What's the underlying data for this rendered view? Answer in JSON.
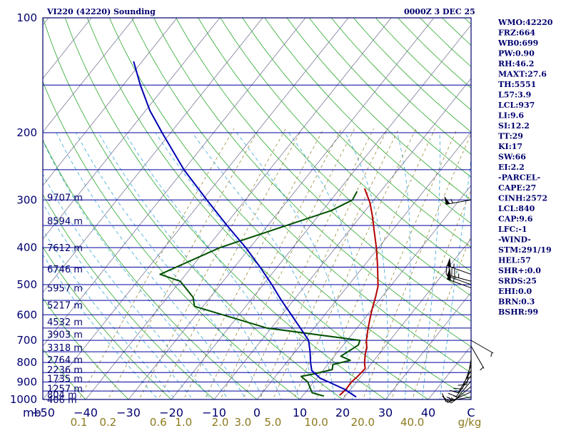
{
  "title_left": "VI220 (42220) Sounding",
  "title_right": "0000Z  3 DEC 25",
  "colors": {
    "frame": "#00006e",
    "isobar": "#0000a0",
    "isotherm": "#7a7a9a",
    "dry_adiabat": "#2aa82a",
    "moist_adiabat": "#3aa8d8",
    "mixing_ratio": "#8c7a1e",
    "temperature": "#b40000",
    "dewpoint": "#005000",
    "parcel": "#0000b4",
    "wind": "#000000"
  },
  "indices": [
    "WMO:42220",
    "FRZ:664",
    "WB0:699",
    "PW:0.90",
    "RH:46.2",
    "MAXT:27.6",
    "TH:5551",
    "L57:3.9",
    "LCL:937",
    "LI:9.6",
    "SI:12.2",
    "TT:29",
    "KI:17",
    "SW:66",
    "EI:2.2",
    "-PARCEL-",
    "CAPE:27",
    "CINH:2572",
    "LCL:840",
    "CAP:9.6",
    "LFC:-1",
    "-WIND-",
    "STM:291/19",
    "HEL:57",
    "SHR+:0.0",
    "SRDS:25",
    "EHI:0.0",
    "BRN:0.3",
    "BSHR:99"
  ],
  "chart_data": {
    "type": "line",
    "diagram": "skew-T log-P",
    "pressure_axis_label": "mb",
    "pressure_range_mb": [
      1000,
      100
    ],
    "pressure_scale": "log",
    "temperature_range_c": [
      -50,
      50
    ],
    "pressure_ticks": [
      "100",
      "200",
      "300",
      "400",
      "500",
      "600",
      "700",
      "800",
      "900",
      "1000"
    ],
    "temperature_ticks": [
      "−50",
      "−40",
      "−30",
      "−20",
      "−10",
      "0",
      "10",
      "20",
      "30",
      "40",
      "C"
    ],
    "mixing_ratio_labels": [
      "0.1",
      "0.2",
      "0.6",
      "1.0",
      "2.0",
      "3.0",
      "5.0",
      "10.0",
      "20.0",
      "40.0"
    ],
    "mixing_ratio_unit": "g/kg",
    "height_labels": [
      {
        "p": 1000,
        "text": "406 m"
      },
      {
        "p": 970,
        "text": "804 m"
      },
      {
        "p": 935,
        "text": "1257 m"
      },
      {
        "p": 880,
        "text": "1735 m"
      },
      {
        "p": 835,
        "text": "2236 m"
      },
      {
        "p": 785,
        "text": "2764 m"
      },
      {
        "p": 730,
        "text": "3318 m"
      },
      {
        "p": 675,
        "text": "3903 m"
      },
      {
        "p": 625,
        "text": "4532 m"
      },
      {
        "p": 565,
        "text": "5217 m"
      },
      {
        "p": 510,
        "text": "5957 m"
      },
      {
        "p": 455,
        "text": "6746 m"
      },
      {
        "p": 400,
        "text": "7612 m"
      },
      {
        "p": 340,
        "text": "8594 m"
      },
      {
        "p": 295,
        "text": "9707 m"
      }
    ],
    "series": [
      {
        "key": "temperature",
        "points": [
          [
            975,
            18.5
          ],
          [
            960,
            18.7
          ],
          [
            940,
            18.9
          ],
          [
            900,
            18.8
          ],
          [
            870,
            19.2
          ],
          [
            830,
            19.5
          ],
          [
            800,
            18.2
          ],
          [
            760,
            16.8
          ],
          [
            730,
            15.9
          ],
          [
            700,
            14.5
          ],
          [
            660,
            13.0
          ],
          [
            620,
            11.5
          ],
          [
            580,
            10.0
          ],
          [
            540,
            8.6
          ],
          [
            505,
            7.1
          ],
          [
            480,
            5.5
          ],
          [
            440,
            2.7
          ],
          [
            400,
            -0.5
          ],
          [
            360,
            -4.3
          ],
          [
            330,
            -7.4
          ],
          [
            305,
            -10.4
          ],
          [
            280,
            -14.3
          ]
        ]
      },
      {
        "key": "dewpoint",
        "points": [
          [
            980,
            15.0
          ],
          [
            960,
            11.6
          ],
          [
            900,
            8.6
          ],
          [
            870,
            6.0
          ],
          [
            860,
            8.0
          ],
          [
            835,
            12.0
          ],
          [
            810,
            11.2
          ],
          [
            790,
            14.5
          ],
          [
            770,
            11.5
          ],
          [
            720,
            13.5
          ],
          [
            700,
            13.0
          ],
          [
            650,
            -11.0
          ],
          [
            570,
            -32.0
          ],
          [
            540,
            -34.0
          ],
          [
            490,
            -40.0
          ],
          [
            470,
            -46.0
          ],
          [
            400,
            -37.0
          ],
          [
            360,
            -28.0
          ],
          [
            320,
            -18.0
          ],
          [
            300,
            -15.0
          ],
          [
            285,
            -15.5
          ]
        ]
      },
      {
        "key": "parcel",
        "points": [
          [
            985,
            22.7
          ],
          [
            940,
            18.5
          ],
          [
            900,
            13.5
          ],
          [
            880,
            10.8
          ],
          [
            840,
            7.4
          ],
          [
            800,
            5.6
          ],
          [
            750,
            3.5
          ],
          [
            700,
            1.0
          ],
          [
            650,
            -3.2
          ],
          [
            600,
            -7.8
          ],
          [
            550,
            -12.8
          ],
          [
            500,
            -18.0
          ],
          [
            450,
            -24.0
          ],
          [
            400,
            -31.0
          ],
          [
            350,
            -39.5
          ],
          [
            300,
            -49.0
          ],
          [
            250,
            -60.0
          ],
          [
            200,
            -72.0
          ],
          [
            175,
            -79.0
          ],
          [
            150,
            -86.0
          ],
          [
            130,
            -92.0
          ]
        ]
      }
    ],
    "wind_barbs": [
      {
        "p": 985,
        "dir": 260,
        "spd": 10
      },
      {
        "p": 955,
        "dir": 245,
        "spd": 15
      },
      {
        "p": 925,
        "dir": 230,
        "spd": 15
      },
      {
        "p": 895,
        "dir": 220,
        "spd": 15
      },
      {
        "p": 865,
        "dir": 215,
        "spd": 15
      },
      {
        "p": 840,
        "dir": 210,
        "spd": 10
      },
      {
        "p": 812,
        "dir": 200,
        "spd": 10
      },
      {
        "p": 785,
        "dir": 190,
        "spd": 10
      },
      {
        "p": 755,
        "dir": 180,
        "spd": 5
      },
      {
        "p": 725,
        "dir": 150,
        "spd": 5
      },
      {
        "p": 700,
        "dir": 120,
        "spd": 5
      },
      {
        "p": 510,
        "dir": 290,
        "spd": 55
      },
      {
        "p": 500,
        "dir": 290,
        "spd": 50
      },
      {
        "p": 490,
        "dir": 285,
        "spd": 45
      },
      {
        "p": 470,
        "dir": 290,
        "spd": 55
      },
      {
        "p": 300,
        "dir": 260,
        "spd": 55
      }
    ]
  }
}
